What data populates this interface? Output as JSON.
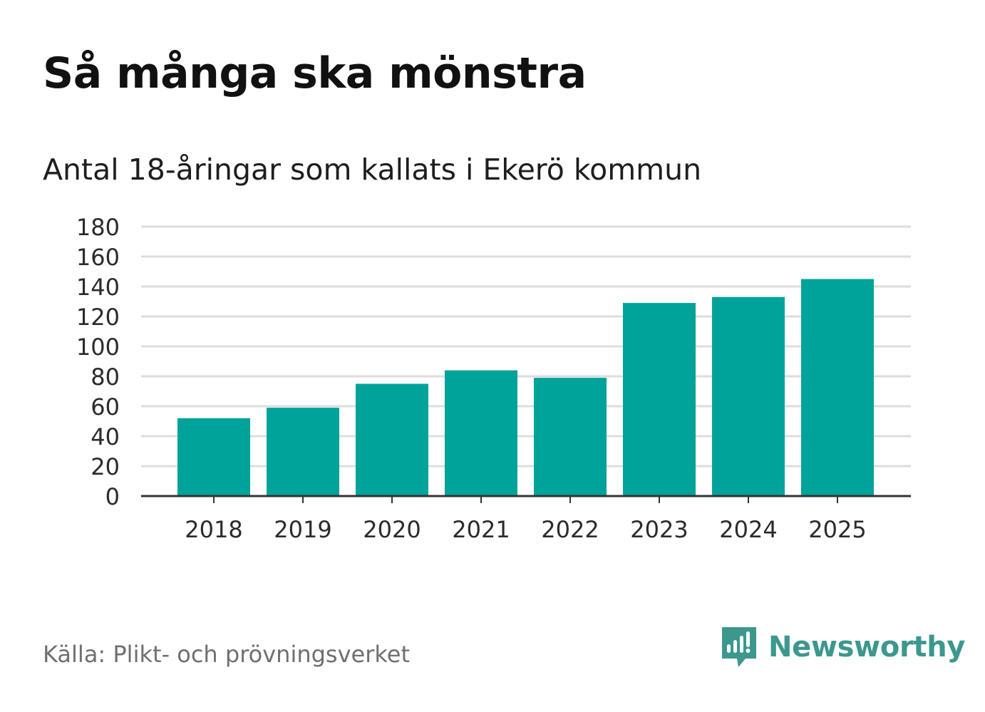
{
  "title": "Så många ska mönstra",
  "subtitle": "Antal 18-åringar som kallats i Ekerö kommun",
  "source": "Källa: Plikt- och prövningsverket",
  "brand": {
    "name": "Newsworthy",
    "icon": "newsworthy-logo-icon",
    "color": "#3c978d"
  },
  "colors": {
    "bar": "#00a39a",
    "grid": "#dddddd",
    "axis": "#333333",
    "tick_text": "#2b2b2b"
  },
  "chart_data": {
    "type": "bar",
    "title": "Så många ska mönstra",
    "subtitle": "Antal 18-åringar som kallats i Ekerö kommun",
    "xlabel": "",
    "ylabel": "",
    "categories": [
      "2018",
      "2019",
      "2020",
      "2021",
      "2022",
      "2023",
      "2024",
      "2025"
    ],
    "values": [
      52,
      59,
      75,
      84,
      79,
      129,
      133,
      145
    ],
    "ylim": [
      0,
      180
    ],
    "yticks": [
      0,
      20,
      40,
      60,
      80,
      100,
      120,
      140,
      160,
      180
    ],
    "grid": true,
    "legend": "none"
  }
}
